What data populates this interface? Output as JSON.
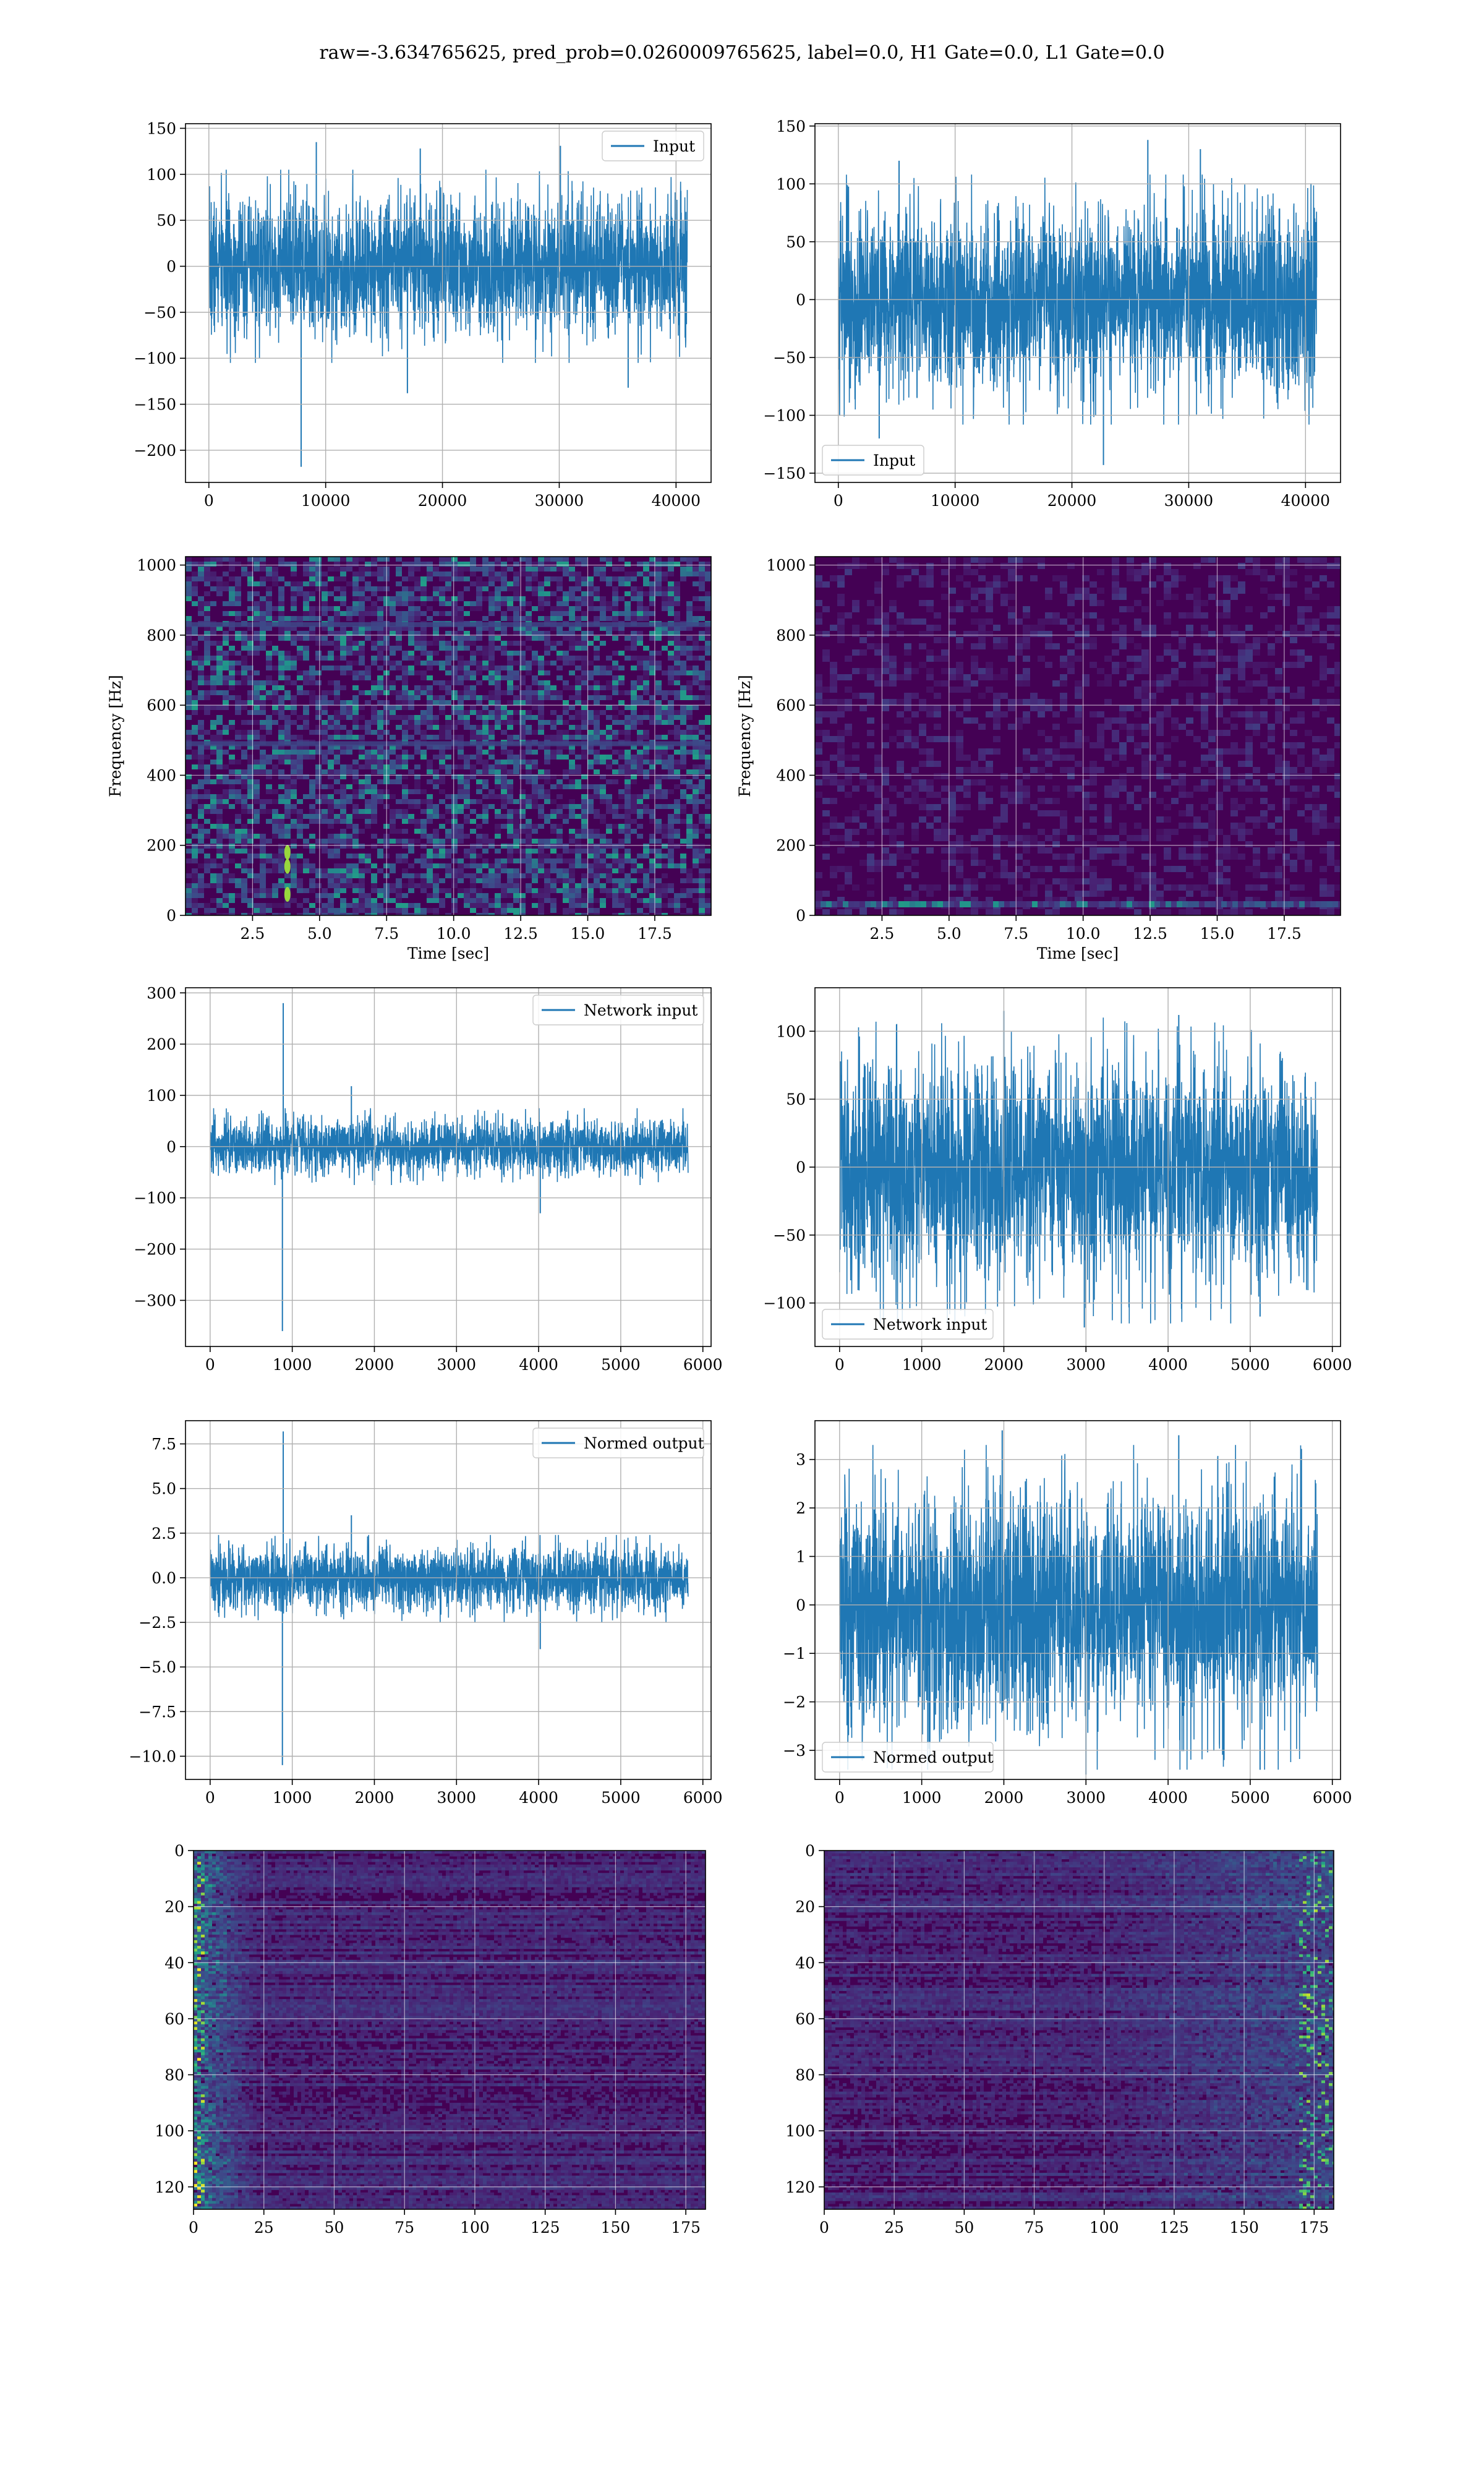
{
  "suptitle": "raw=-3.634765625, pred_prob=0.0260009765625, label=0.0, H1 Gate=0.0, L1 Gate=0.0",
  "colors": {
    "line": "#1f77b4",
    "grid": "#b0b0b0",
    "viridis_low": "#440154",
    "viridis_mid": "#21918c",
    "viridis_high": "#fde725"
  },
  "chart_data": [
    {
      "id": "h1-input",
      "type": "line",
      "legend": "Input",
      "legend_loc": "upper right",
      "xlim": [
        -2000,
        43000
      ],
      "ylim": [
        -235,
        155
      ],
      "xticks": [
        0,
        10000,
        20000,
        30000,
        40000
      ],
      "yticks": [
        -200,
        -150,
        -100,
        -50,
        0,
        50,
        100,
        150
      ],
      "n_points": 40960,
      "envelope": [
        105,
        -105
      ],
      "spikes": [
        [
          7900,
          -218
        ],
        [
          9200,
          135
        ],
        [
          18100,
          128
        ],
        [
          17000,
          -138
        ],
        [
          30100,
          131
        ],
        [
          35900,
          -132
        ]
      ],
      "grid": true
    },
    {
      "id": "l1-input",
      "type": "line",
      "legend": "Input",
      "legend_loc": "lower left",
      "xlim": [
        -2000,
        43000
      ],
      "ylim": [
        -158,
        152
      ],
      "xticks": [
        0,
        10000,
        20000,
        30000,
        40000
      ],
      "yticks": [
        -150,
        -100,
        -50,
        0,
        50,
        100,
        150
      ],
      "n_points": 40960,
      "envelope": [
        108,
        -108
      ],
      "spikes": [
        [
          26500,
          138
        ],
        [
          22700,
          -143
        ],
        [
          5200,
          120
        ],
        [
          31000,
          130
        ],
        [
          3500,
          -120
        ]
      ],
      "grid": true
    },
    {
      "id": "h1-spectrogram",
      "type": "heatmap",
      "xlim": [
        0,
        19.6
      ],
      "ylim": [
        0,
        1024
      ],
      "xticks": [
        2.5,
        5.0,
        7.5,
        10.0,
        12.5,
        15.0,
        17.5
      ],
      "yticks": [
        0,
        200,
        400,
        600,
        800,
        1000
      ],
      "xlabel": "Time [sec]",
      "ylabel": "Frequency [Hz]",
      "texture": "speckled",
      "lines_hz": [
        490,
        830
      ],
      "hot_spots": [
        [
          3.8,
          60
        ],
        [
          3.8,
          140
        ],
        [
          3.8,
          180
        ]
      ],
      "grid": true
    },
    {
      "id": "l1-spectrogram",
      "type": "heatmap",
      "xlim": [
        0,
        19.6
      ],
      "ylim": [
        0,
        1024
      ],
      "xticks": [
        2.5,
        5.0,
        7.5,
        10.0,
        12.5,
        15.0,
        17.5
      ],
      "yticks": [
        0,
        200,
        400,
        600,
        800,
        1000
      ],
      "xlabel": "Time [sec]",
      "ylabel": "Frequency [Hz]",
      "texture": "dark",
      "low_band_hz": 30,
      "grid": true
    },
    {
      "id": "h1-network-input",
      "type": "line",
      "legend": "Network input",
      "legend_loc": "upper right",
      "xlim": [
        -300,
        6100
      ],
      "ylim": [
        -390,
        310
      ],
      "xticks": [
        0,
        1000,
        2000,
        3000,
        4000,
        5000,
        6000
      ],
      "yticks": [
        -300,
        -200,
        -100,
        0,
        100,
        200,
        300
      ],
      "n_points": 5820,
      "envelope": [
        75,
        -75
      ],
      "spikes": [
        [
          890,
          280
        ],
        [
          880,
          -360
        ],
        [
          4020,
          -130
        ],
        [
          1720,
          118
        ]
      ],
      "grid": true
    },
    {
      "id": "l1-network-input",
      "type": "line",
      "legend": "Network input",
      "legend_loc": "lower left",
      "xlim": [
        -300,
        6100
      ],
      "ylim": [
        -132,
        132
      ],
      "xticks": [
        0,
        1000,
        2000,
        3000,
        4000,
        5000,
        6000
      ],
      "yticks": [
        -100,
        -50,
        0,
        50,
        100
      ],
      "n_points": 5820,
      "envelope": [
        110,
        -115
      ],
      "spikes": [
        [
          2000,
          115
        ],
        [
          2980,
          -118
        ],
        [
          4130,
          112
        ],
        [
          5120,
          -110
        ]
      ],
      "grid": true
    },
    {
      "id": "h1-normed-output",
      "type": "line",
      "legend": "Normed output",
      "legend_loc": "upper right",
      "xlim": [
        -300,
        6100
      ],
      "ylim": [
        -11.3,
        8.8
      ],
      "xticks": [
        0,
        1000,
        2000,
        3000,
        4000,
        5000,
        6000
      ],
      "yticks": [
        -10.0,
        -7.5,
        -5.0,
        -2.5,
        0.0,
        2.5,
        5.0,
        7.5
      ],
      "n_points": 5820,
      "envelope": [
        2.4,
        -2.5
      ],
      "spikes": [
        [
          890,
          8.2
        ],
        [
          880,
          -10.5
        ],
        [
          4020,
          -4.0
        ],
        [
          1720,
          3.5
        ]
      ],
      "grid": true
    },
    {
      "id": "l1-normed-output",
      "type": "line",
      "legend": "Normed output",
      "legend_loc": "lower left",
      "xlim": [
        -300,
        6100
      ],
      "ylim": [
        -3.6,
        3.8
      ],
      "xticks": [
        0,
        1000,
        2000,
        3000,
        4000,
        5000,
        6000
      ],
      "yticks": [
        -3,
        -2,
        -1,
        0,
        1,
        2,
        3
      ],
      "n_points": 5820,
      "envelope": [
        3.3,
        -3.4
      ],
      "spikes": [
        [
          1980,
          3.6
        ],
        [
          3000,
          -3.5
        ],
        [
          4130,
          3.5
        ],
        [
          5120,
          -3.4
        ]
      ],
      "grid": true
    },
    {
      "id": "h1-feature-map",
      "type": "heatmap",
      "xlim": [
        0,
        182
      ],
      "ylim": [
        128,
        0
      ],
      "xticks": [
        0,
        25,
        50,
        75,
        100,
        125,
        150,
        175
      ],
      "yticks": [
        0,
        20,
        40,
        60,
        80,
        100,
        120
      ],
      "texture": "bright-left",
      "grid": true
    },
    {
      "id": "l1-feature-map",
      "type": "heatmap",
      "xlim": [
        0,
        182
      ],
      "ylim": [
        128,
        0
      ],
      "xticks": [
        0,
        25,
        50,
        75,
        100,
        125,
        150,
        175
      ],
      "yticks": [
        0,
        20,
        40,
        60,
        80,
        100,
        120
      ],
      "texture": "bright-right",
      "grid": true
    }
  ]
}
